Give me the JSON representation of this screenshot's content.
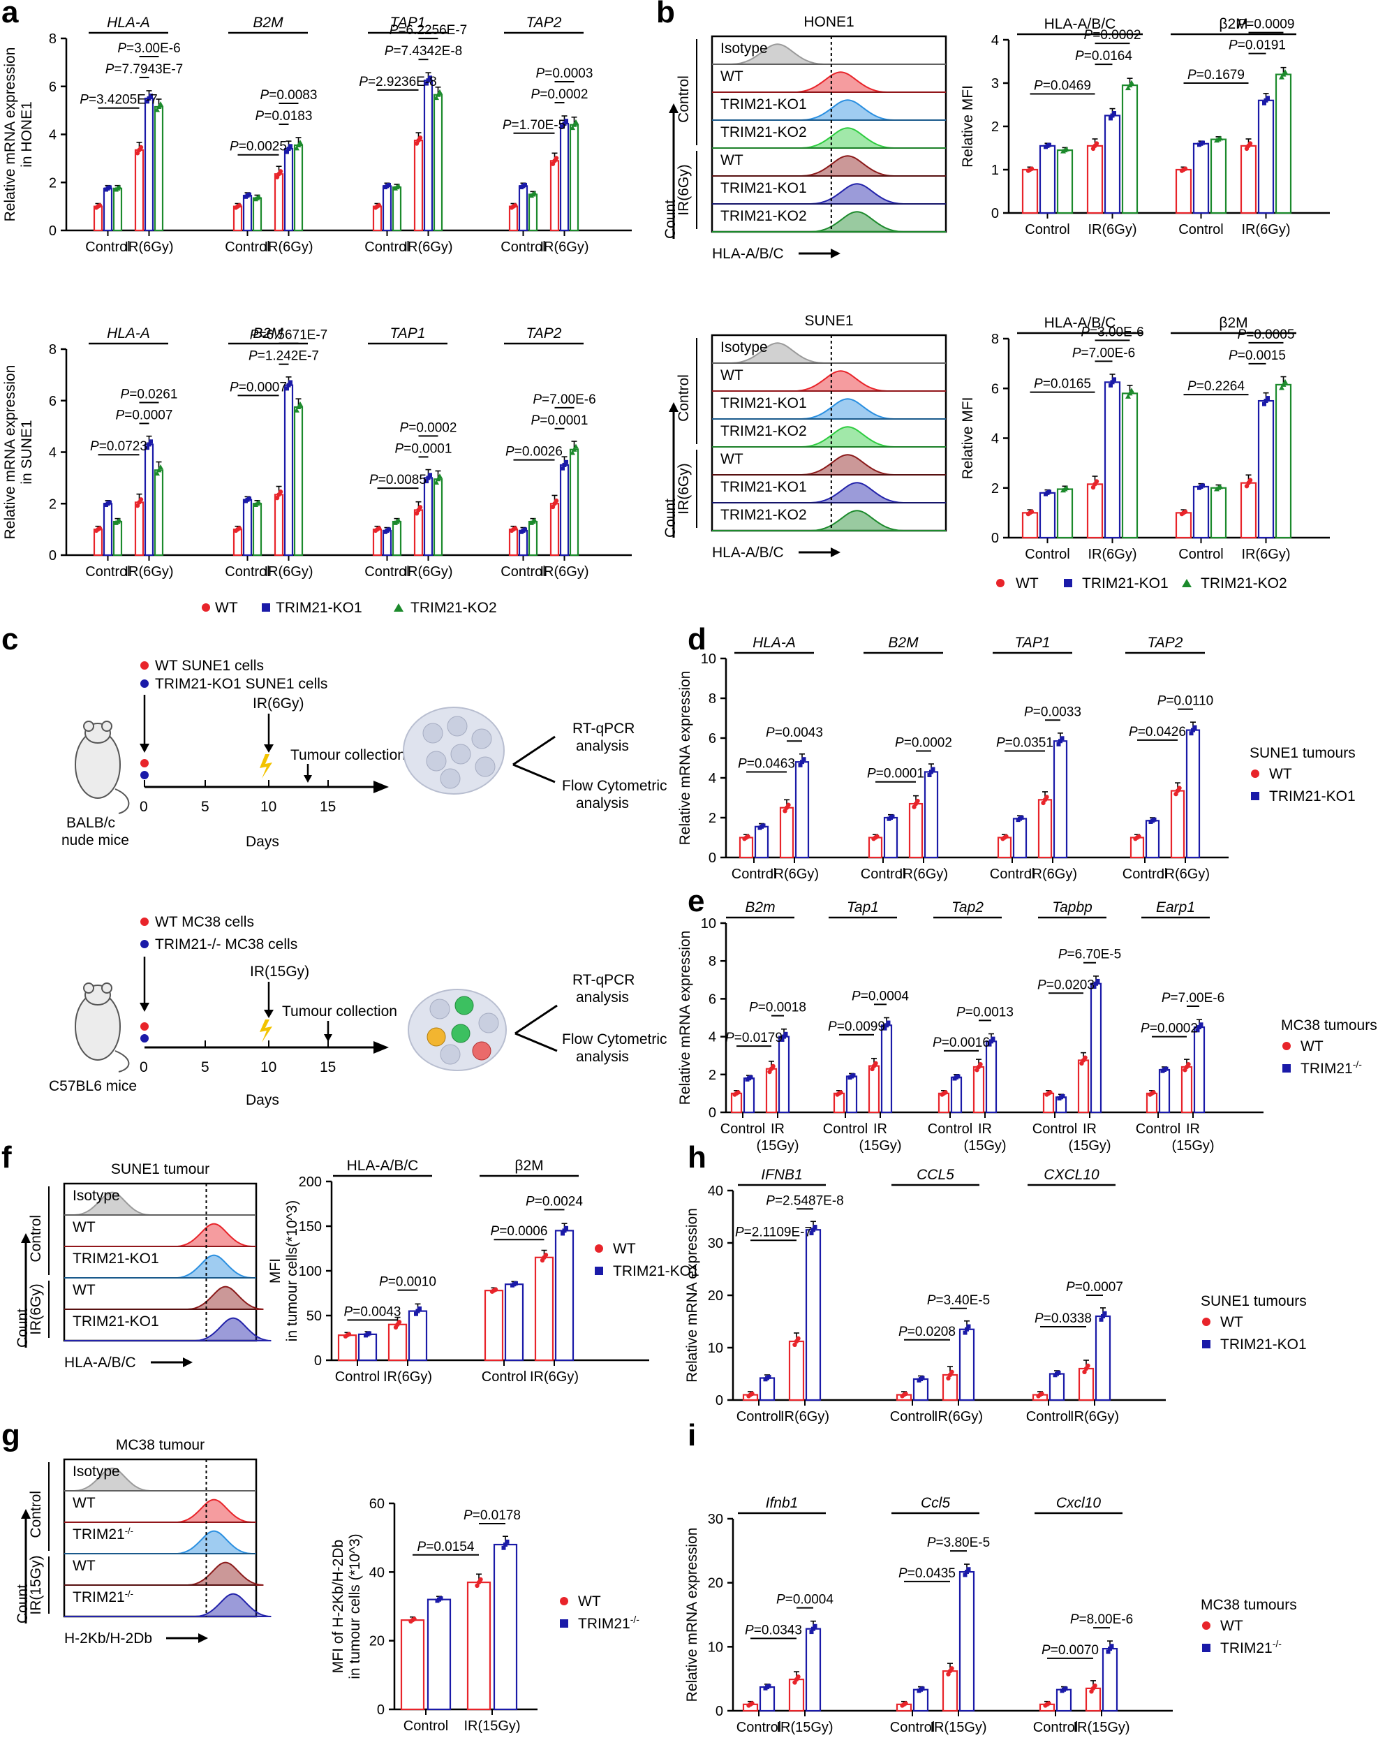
{
  "colors": {
    "wt": "#e8242a",
    "ko1": "#1a1aa8",
    "ko2": "#1c8a2c",
    "axis": "#000000",
    "isotype": "#9a9a9a",
    "ko1_flow_ctrl": "#2a8fe0",
    "ko2_flow": "#2ecc40",
    "ko1_flow_ir": "#2222aa",
    "wt_flow_ir": "#8b1a1a"
  },
  "legend_main": {
    "wt": "WT",
    "ko1": "TRIM21-KO1",
    "ko2": "TRIM21-KO2"
  },
  "panel_letters": [
    "a",
    "b",
    "c",
    "d",
    "e",
    "f",
    "g",
    "h",
    "i"
  ],
  "chart_data": [
    {
      "id": "a_top",
      "type": "bar",
      "ylabel": "Relative mRNA expression in HONE1",
      "ylim": [
        0,
        8
      ],
      "yticks": [
        0,
        2,
        4,
        6,
        8
      ],
      "groups": [
        "Control",
        "IR(6Gy)"
      ],
      "series_names": [
        "WT",
        "TRIM21-KO1",
        "TRIM21-KO2"
      ],
      "genes": [
        {
          "name": "HLA-A",
          "values": [
            [
              1.0,
              1.75,
              1.75
            ],
            [
              3.35,
              5.5,
              5.15
            ]
          ],
          "pvals": [
            "P=3.4205E-7",
            "P=7.7943E-7",
            "P=3.00E-6"
          ]
        },
        {
          "name": "B2M",
          "values": [
            [
              1.0,
              1.45,
              1.35
            ],
            [
              2.35,
              3.4,
              3.55
            ]
          ],
          "pvals": [
            "P=0.0025",
            "P=0.0183",
            "P=0.0083"
          ]
        },
        {
          "name": "TAP1",
          "values": [
            [
              1.0,
              1.85,
              1.8
            ],
            [
              3.75,
              6.25,
              5.65
            ]
          ],
          "pvals": [
            "P=2.9236E-8",
            "P=7.4342E-8",
            "P=6.2256E-7"
          ]
        },
        {
          "name": "TAP2",
          "values": [
            [
              1.0,
              1.85,
              1.5
            ],
            [
              2.9,
              4.45,
              4.4
            ]
          ],
          "pvals": [
            "P=1.70E-5",
            "P=0.0002",
            "P=0.0003"
          ]
        }
      ]
    },
    {
      "id": "a_bottom",
      "type": "bar",
      "ylabel": "Relative mRNA expression in SUNE1",
      "ylim": [
        0,
        8
      ],
      "yticks": [
        0,
        2,
        4,
        6,
        8
      ],
      "groups": [
        "Control",
        "IR(6Gy)"
      ],
      "series_names": [
        "WT",
        "TRIM21-KO1",
        "TRIM21-KO2"
      ],
      "genes": [
        {
          "name": "HLA-A",
          "values": [
            [
              1.0,
              2.0,
              1.3
            ],
            [
              2.05,
              4.3,
              3.3
            ]
          ],
          "pvals": [
            "P=0.0723",
            "P=0.0007",
            "P=0.0261"
          ]
        },
        {
          "name": "B2M",
          "values": [
            [
              1.0,
              2.15,
              2.0
            ],
            [
              2.35,
              6.6,
              5.75
            ]
          ],
          "pvals": [
            "P=0.0007",
            "P=1.242E-7",
            "P=6.5671E-7"
          ]
        },
        {
          "name": "TAP1",
          "values": [
            [
              1.0,
              0.95,
              1.3
            ],
            [
              1.75,
              3.0,
              2.95
            ]
          ],
          "pvals": [
            "P=0.0085",
            "P=0.0001",
            "P=0.0002"
          ]
        },
        {
          "name": "TAP2",
          "values": [
            [
              1.0,
              0.95,
              1.3
            ],
            [
              2.0,
              3.5,
              4.1
            ]
          ],
          "pvals": [
            "P=0.0026",
            "P=0.0001",
            "P=7.00E-6"
          ]
        }
      ]
    },
    {
      "id": "b_top",
      "type": "bar",
      "ylabel": "Relative MFI",
      "ylim": [
        0,
        4
      ],
      "yticks": [
        0,
        1,
        2,
        3,
        4
      ],
      "groups": [
        "Control",
        "IR(6Gy)"
      ],
      "series_names": [
        "WT",
        "TRIM21-KO1",
        "TRIM21-KO2"
      ],
      "genes": [
        {
          "name": "HLA-A/B/C",
          "values": [
            [
              1.0,
              1.55,
              1.45
            ],
            [
              1.55,
              2.25,
              2.95
            ]
          ],
          "pvals": [
            "P=0.0469",
            "P=0.0164",
            "P=0.0002"
          ]
        },
        {
          "name": "β2M",
          "values": [
            [
              1.0,
              1.6,
              1.7
            ],
            [
              1.55,
              2.6,
              3.2
            ]
          ],
          "pvals": [
            "P=0.1679",
            "P=0.0191",
            "P=0.0009"
          ]
        }
      ]
    },
    {
      "id": "b_bottom",
      "type": "bar",
      "ylabel": "Relative MFI",
      "ylim": [
        0,
        8
      ],
      "yticks": [
        0,
        2,
        4,
        6,
        8
      ],
      "groups": [
        "Control",
        "IR(6Gy)"
      ],
      "series_names": [
        "WT",
        "TRIM21-KO1",
        "TRIM21-KO2"
      ],
      "genes": [
        {
          "name": "HLA-A/B/C",
          "values": [
            [
              1.0,
              1.8,
              1.95
            ],
            [
              2.15,
              6.25,
              5.8
            ]
          ],
          "pvals": [
            "P=0.0165",
            "P=7.00E-6",
            "P=3.00E-6"
          ]
        },
        {
          "name": "β2M",
          "values": [
            [
              1.0,
              2.05,
              2.0
            ],
            [
              2.2,
              5.5,
              6.15
            ]
          ],
          "pvals": [
            "P=0.2264",
            "P=0.0015",
            "P=0.0005"
          ]
        }
      ]
    },
    {
      "id": "d",
      "type": "bar",
      "ylabel": "Relative mRNA expression",
      "ylim": [
        0,
        10
      ],
      "yticks": [
        0,
        2,
        4,
        6,
        8,
        10
      ],
      "groups": [
        "Control",
        "IR(6Gy)"
      ],
      "series_names": [
        "WT",
        "TRIM21-KO1"
      ],
      "legend_title": "SUNE1 tumours",
      "genes": [
        {
          "name": "HLA-A",
          "values": [
            [
              1.0,
              1.55
            ],
            [
              2.5,
              4.8
            ]
          ],
          "pvals": [
            "P=0.0463",
            "P=0.0043"
          ]
        },
        {
          "name": "B2M",
          "values": [
            [
              1.0,
              2.0
            ],
            [
              2.7,
              4.3
            ]
          ],
          "pvals": [
            "P=0.0001",
            "P=0.0002"
          ]
        },
        {
          "name": "TAP1",
          "values": [
            [
              1.0,
              1.95
            ],
            [
              2.9,
              5.85
            ]
          ],
          "pvals": [
            "P=0.0351",
            "P=0.0033"
          ]
        },
        {
          "name": "TAP2",
          "values": [
            [
              1.0,
              1.85
            ],
            [
              3.35,
              6.4
            ]
          ],
          "pvals": [
            "P=0.0426",
            "P=0.0110"
          ]
        }
      ]
    },
    {
      "id": "e",
      "type": "bar",
      "ylabel": "Relative mRNA expression",
      "ylim": [
        0,
        10
      ],
      "yticks": [
        0,
        2,
        4,
        6,
        8,
        10
      ],
      "groups": [
        "Control",
        "IR (15Gy)"
      ],
      "series_names": [
        "WT",
        "TRIM21-/-"
      ],
      "legend_title": "MC38 tumours",
      "genes": [
        {
          "name": "B2m",
          "values": [
            [
              1.0,
              1.8
            ],
            [
              2.3,
              4.0
            ]
          ],
          "pvals": [
            "P=0.0179",
            "P=0.0018"
          ]
        },
        {
          "name": "Tap1",
          "values": [
            [
              1.0,
              1.9
            ],
            [
              2.45,
              4.6
            ]
          ],
          "pvals": [
            "P=0.0099",
            "P=0.0004"
          ]
        },
        {
          "name": "Tap2",
          "values": [
            [
              1.0,
              1.85
            ],
            [
              2.4,
              3.75
            ]
          ],
          "pvals": [
            "P=0.0016",
            "P=0.0013"
          ]
        },
        {
          "name": "Tapbp",
          "values": [
            [
              1.0,
              0.8
            ],
            [
              2.75,
              6.8
            ]
          ],
          "pvals": [
            "P=0.0203",
            "P=6.70E-5"
          ]
        },
        {
          "name": "Earp1",
          "values": [
            [
              1.0,
              2.25
            ],
            [
              2.4,
              4.5
            ]
          ],
          "pvals": [
            "P=0.0002",
            "P=7.00E-6"
          ]
        }
      ]
    },
    {
      "id": "f",
      "type": "bar",
      "ylabel": "MFI in tumour cells(*10^3)",
      "ylim": [
        0,
        200
      ],
      "yticks": [
        0,
        50,
        100,
        150,
        200
      ],
      "groups": [
        "Control",
        "IR(6Gy)"
      ],
      "series_names": [
        "WT",
        "TRIM21-KO1"
      ],
      "genes": [
        {
          "name": "HLA-A/B/C",
          "values": [
            [
              28,
              29
            ],
            [
              40,
              55
            ]
          ],
          "pvals": [
            "P=0.0043",
            "P=0.0010"
          ]
        },
        {
          "name": "β2M",
          "values": [
            [
              78,
              85
            ],
            [
              115,
              145
            ]
          ],
          "pvals": [
            "P=0.0006",
            "P=0.0024"
          ]
        }
      ]
    },
    {
      "id": "g",
      "type": "bar",
      "ylabel": "MFI of H-2Kb/H-2Db in tumour cells (*10^3)",
      "ylim": [
        0,
        60
      ],
      "yticks": [
        0,
        20,
        40,
        60
      ],
      "groups": [
        "Control",
        "IR(15Gy)"
      ],
      "series_names": [
        "WT",
        "TRIM21-/-"
      ],
      "genes": [
        {
          "name": "",
          "values": [
            [
              26,
              32
            ],
            [
              37,
              48
            ]
          ],
          "pvals": [
            "P=0.0154",
            "P=0.0178"
          ]
        }
      ]
    },
    {
      "id": "h",
      "type": "bar",
      "ylabel": "Relative mRNA expression",
      "ylim": [
        0,
        40
      ],
      "yticks": [
        0,
        10,
        20,
        30,
        40
      ],
      "groups": [
        "Control",
        "IR(6Gy)"
      ],
      "series_names": [
        "WT",
        "TRIM21-KO1"
      ],
      "legend_title": "SUNE1 tumours",
      "genes": [
        {
          "name": "IFNB1",
          "values": [
            [
              1.0,
              4.2
            ],
            [
              11.2,
              32.5
            ]
          ],
          "pvals": [
            "P=2.1109E-7",
            "P=2.5487E-8"
          ]
        },
        {
          "name": "CCL5",
          "values": [
            [
              1.0,
              4.0
            ],
            [
              4.8,
              13.5
            ]
          ],
          "pvals": [
            "P=0.0208",
            "P=3.40E-5"
          ]
        },
        {
          "name": "CXCL10",
          "values": [
            [
              1.0,
              5.0
            ],
            [
              6.0,
              16.0
            ]
          ],
          "pvals": [
            "P=0.0338",
            "P=0.0007"
          ]
        }
      ]
    },
    {
      "id": "i",
      "type": "bar",
      "ylabel": "Relative mRNA expression",
      "ylim": [
        0,
        30
      ],
      "yticks": [
        0,
        10,
        20,
        30
      ],
      "groups": [
        "Control",
        "IR(15Gy)"
      ],
      "series_names": [
        "WT",
        "TRIM21-/-"
      ],
      "legend_title": "MC38 tumours",
      "genes": [
        {
          "name": "Ifnb1",
          "values": [
            [
              1.0,
              3.7
            ],
            [
              4.9,
              12.8
            ]
          ],
          "pvals": [
            "P=0.0343",
            "P=0.0004"
          ]
        },
        {
          "name": "Ccl5",
          "values": [
            [
              1.0,
              3.3
            ],
            [
              6.2,
              21.7
            ]
          ],
          "pvals": [
            "P=0.0435",
            "P=3.80E-5"
          ]
        },
        {
          "name": "Cxcl10",
          "values": [
            [
              1.0,
              3.3
            ],
            [
              3.5,
              9.7
            ]
          ],
          "pvals": [
            "P=0.0070",
            "P=8.00E-6"
          ]
        }
      ]
    }
  ],
  "flow": {
    "b_top": {
      "title": "HONE1",
      "rows": [
        "Isotype",
        "WT",
        "TRIM21-KO1",
        "TRIM21-KO2",
        "WT",
        "TRIM21-KO1",
        "TRIM21-KO2"
      ],
      "xlabel": "HLA-A/B/C",
      "control": "Control",
      "ir": "IR(6Gy)",
      "count": "Count"
    },
    "b_bottom": {
      "title": "SUNE1",
      "rows": [
        "Isotype",
        "WT",
        "TRIM21-KO1",
        "TRIM21-KO2",
        "WT",
        "TRIM21-KO1",
        "TRIM21-KO2"
      ],
      "xlabel": "HLA-A/B/C",
      "control": "Control",
      "ir": "IR(6Gy)",
      "count": "Count"
    },
    "f": {
      "title": "SUNE1 tumour",
      "rows": [
        "Isotype",
        "WT",
        "TRIM21-KO1",
        "WT",
        "TRIM21-KO1"
      ],
      "xlabel": "HLA-A/B/C",
      "control": "Control",
      "ir": "IR(6Gy)",
      "count": "Count"
    },
    "g": {
      "title": "MC38 tumour",
      "rows": [
        "Isotype",
        "WT",
        "TRIM21-/-",
        "WT",
        "TRIM21-/-"
      ],
      "xlabel": "H-2Kb/H-2Db",
      "control": "Control",
      "ir": "IR(15Gy)",
      "count": "Count"
    }
  },
  "schematic_c": {
    "top": {
      "legend": [
        "WT SUNE1 cells",
        "TRIM21-KO1 SUNE1 cells"
      ],
      "ir": "IR(6Gy)",
      "collection": "Tumour collection",
      "ticks": [
        "0",
        "5",
        "10",
        "15"
      ],
      "days": "Days",
      "mouse": [
        "BALB/c",
        "nude mice"
      ],
      "outputs": [
        "RT-qPCR",
        "analysis",
        "Flow Cytometric",
        "analysis"
      ]
    },
    "bottom": {
      "legend": [
        "WT MC38 cells",
        "TRIM21-/- MC38 cells"
      ],
      "ir": "IR(15Gy)",
      "collection": "Tumour collection",
      "ticks": [
        "0",
        "5",
        "10",
        "15"
      ],
      "days": "Days",
      "mouse": [
        "C57BL6 mice"
      ],
      "outputs": [
        "RT-qPCR",
        "analysis",
        "Flow Cytometric",
        "analysis"
      ]
    }
  }
}
